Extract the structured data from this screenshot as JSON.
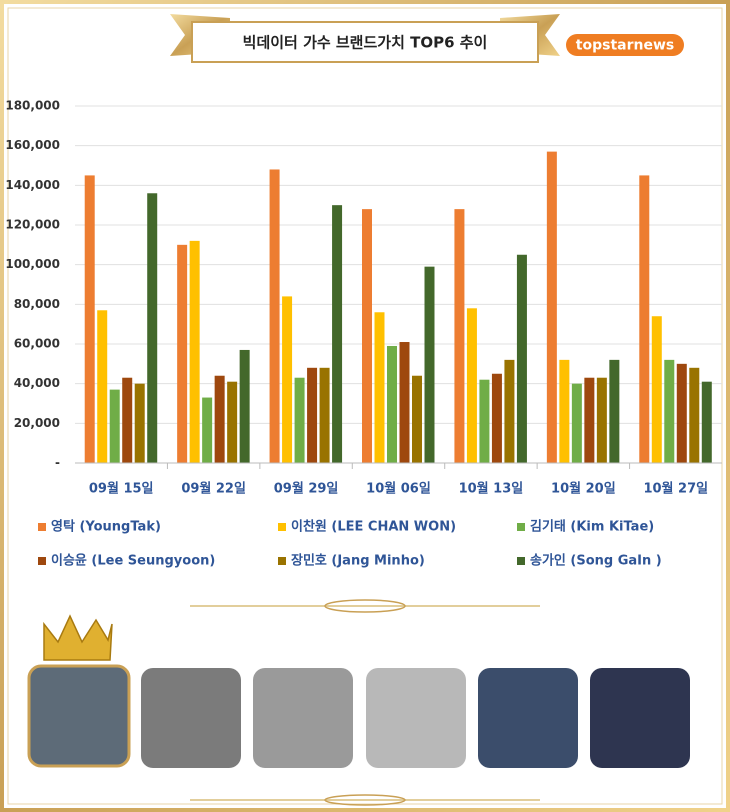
{
  "logo": "topstarnews",
  "chart_data": {
    "type": "bar",
    "title": "빅데이터 가수 브랜드가치 TOP6 추이",
    "categories": [
      "09월 15일",
      "09월 22일",
      "09월 29일",
      "10월 06일",
      "10월 13일",
      "10월 20일",
      "10월 27일"
    ],
    "series": [
      {
        "name": "영탁 (YoungTak)",
        "color": "#ed7d31",
        "values": [
          145000,
          110000,
          148000,
          128000,
          128000,
          157000,
          145000
        ]
      },
      {
        "name": "이찬원 (LEE CHAN WON)",
        "color": "#ffc000",
        "values": [
          77000,
          112000,
          84000,
          76000,
          78000,
          52000,
          74000
        ]
      },
      {
        "name": "김기태 (Kim KiTae)",
        "color": "#70ad47",
        "values": [
          37000,
          33000,
          43000,
          59000,
          42000,
          40000,
          52000
        ]
      },
      {
        "name": "이승윤 (Lee Seungyoon)",
        "color": "#9e480e",
        "values": [
          43000,
          44000,
          48000,
          61000,
          45000,
          43000,
          50000
        ]
      },
      {
        "name": "장민호 (Jang Minho)",
        "color": "#997300",
        "values": [
          40000,
          41000,
          48000,
          44000,
          52000,
          43000,
          48000
        ]
      },
      {
        "name": "송가인 (Song GaIn )",
        "color": "#43682b",
        "values": [
          136000,
          57000,
          130000,
          99000,
          105000,
          52000,
          41000
        ]
      }
    ],
    "ylim": [
      0,
      180000
    ],
    "yticks": [
      {
        "value": 0,
        "label": "-"
      },
      {
        "value": 20000,
        "label": "20,000"
      },
      {
        "value": 40000,
        "label": "40,000"
      },
      {
        "value": 60000,
        "label": "60,000"
      },
      {
        "value": 80000,
        "label": "80,000"
      },
      {
        "value": 100000,
        "label": "100,000"
      },
      {
        "value": 120000,
        "label": "120,000"
      },
      {
        "value": 140000,
        "label": "140,000"
      },
      {
        "value": 160000,
        "label": "160,000"
      },
      {
        "value": 180000,
        "label": "180,000"
      }
    ],
    "grid": true
  }
}
